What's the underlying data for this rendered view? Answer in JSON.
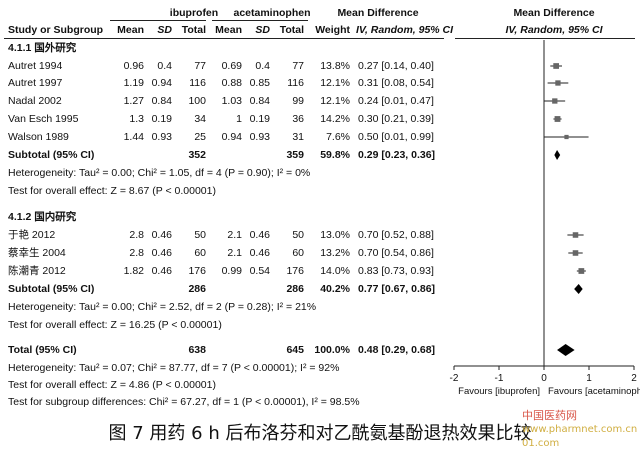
{
  "headers": {
    "group1": "ibuprofen",
    "group2": "acetaminophen",
    "md_group": "Mean Difference",
    "md_plot": "Mean Difference",
    "study": "Study or Subgroup",
    "mean": "Mean",
    "sd": "SD",
    "total": "Total",
    "weight": "Weight",
    "iv_table": "IV, Random, 95% CI",
    "iv_plot": "IV, Random, 95% CI"
  },
  "subgroups": [
    {
      "title": "4.1.1 国外研究",
      "studies": [
        {
          "name": "Autret 1994",
          "m1": "0.96",
          "sd1": "0.4",
          "n1": "77",
          "m2": "0.69",
          "sd2": "0.4",
          "n2": "77",
          "weight": "13.8%",
          "ci": "0.27 [0.14, 0.40]",
          "est": 0.27,
          "lo": 0.14,
          "hi": 0.4
        },
        {
          "name": "Autret 1997",
          "m1": "1.19",
          "sd1": "0.94",
          "n1": "116",
          "m2": "0.88",
          "sd2": "0.85",
          "n2": "116",
          "weight": "12.1%",
          "ci": "0.31 [0.08, 0.54]",
          "est": 0.31,
          "lo": 0.08,
          "hi": 0.54
        },
        {
          "name": "Nadal 2002",
          "m1": "1.27",
          "sd1": "0.84",
          "n1": "100",
          "m2": "1.03",
          "sd2": "0.84",
          "n2": "99",
          "weight": "12.1%",
          "ci": "0.24 [0.01, 0.47]",
          "est": 0.24,
          "lo": 0.01,
          "hi": 0.47
        },
        {
          "name": "Van Esch 1995",
          "m1": "1.3",
          "sd1": "0.19",
          "n1": "34",
          "m2": "1",
          "sd2": "0.19",
          "n2": "36",
          "weight": "14.2%",
          "ci": "0.30 [0.21, 0.39]",
          "est": 0.3,
          "lo": 0.21,
          "hi": 0.39
        },
        {
          "name": "Walson 1989",
          "m1": "1.44",
          "sd1": "0.93",
          "n1": "25",
          "m2": "0.94",
          "sd2": "0.93",
          "n2": "31",
          "weight": "7.6%",
          "ci": "0.50 [0.01, 0.99]",
          "est": 0.5,
          "lo": 0.01,
          "hi": 0.99
        }
      ],
      "subtotal": {
        "label": "Subtotal (95% CI)",
        "n1": "352",
        "n2": "359",
        "weight": "59.8%",
        "ci": "0.29 [0.23, 0.36]",
        "est": 0.29,
        "lo": 0.23,
        "hi": 0.36
      },
      "heterogeneity": "Heterogeneity: Tau² = 0.00; Chi² = 1.05, df = 4 (P = 0.90); I² = 0%",
      "overall_test": "Test for overall effect: Z = 8.67 (P < 0.00001)"
    },
    {
      "title": "4.1.2 国内研究",
      "studies": [
        {
          "name": "于艳 2012",
          "m1": "2.8",
          "sd1": "0.46",
          "n1": "50",
          "m2": "2.1",
          "sd2": "0.46",
          "n2": "50",
          "weight": "13.0%",
          "ci": "0.70 [0.52, 0.88]",
          "est": 0.7,
          "lo": 0.52,
          "hi": 0.88
        },
        {
          "name": "蔡幸生 2004",
          "m1": "2.8",
          "sd1": "0.46",
          "n1": "60",
          "m2": "2.1",
          "sd2": "0.46",
          "n2": "60",
          "weight": "13.2%",
          "ci": "0.70 [0.54, 0.86]",
          "est": 0.7,
          "lo": 0.54,
          "hi": 0.86
        },
        {
          "name": "陈潮青 2012",
          "m1": "1.82",
          "sd1": "0.46",
          "n1": "176",
          "m2": "0.99",
          "sd2": "0.54",
          "n2": "176",
          "weight": "14.0%",
          "ci": "0.83 [0.73, 0.93]",
          "est": 0.83,
          "lo": 0.73,
          "hi": 0.93
        }
      ],
      "subtotal": {
        "label": "Subtotal (95% CI)",
        "n1": "286",
        "n2": "286",
        "weight": "40.2%",
        "ci": "0.77 [0.67, 0.86]",
        "est": 0.77,
        "lo": 0.67,
        "hi": 0.86
      },
      "heterogeneity": "Heterogeneity: Tau² = 0.00; Chi² = 2.52, df = 2 (P = 0.28); I² = 21%",
      "overall_test": "Test for overall effect: Z = 16.25 (P < 0.00001)"
    }
  ],
  "total": {
    "label": "Total (95% CI)",
    "n1": "638",
    "n2": "645",
    "weight": "100.0%",
    "ci": "0.48 [0.29, 0.68]",
    "est": 0.48,
    "lo": 0.29,
    "hi": 0.68
  },
  "total_heterogeneity": "Heterogeneity: Tau² = 0.07; Chi² = 87.77, df = 7 (P < 0.00001); I² = 92%",
  "total_overall_test": "Test for overall effect: Z = 4.86 (P < 0.00001)",
  "subgroup_diff_test": "Test for subgroup differences: Chi² = 67.27, df = 1 (P < 0.00001), I² = 98.5%",
  "axis": {
    "ticks": [
      "-2",
      "-1",
      "0",
      "1",
      "2"
    ],
    "tick_values": [
      -2,
      -1,
      0,
      1,
      2
    ],
    "min": -2,
    "max": 2,
    "favours_left": "Favours [ibuprofen]",
    "favours_right": "Favours [acetaminophen]"
  },
  "caption": "图 7   用药 6 h 后布洛芬和对乙酰氨基酚退热效果比较",
  "watermark": {
    "text": "中国医药网",
    "url": "www.pharmnet.com.cn 01.com"
  }
}
